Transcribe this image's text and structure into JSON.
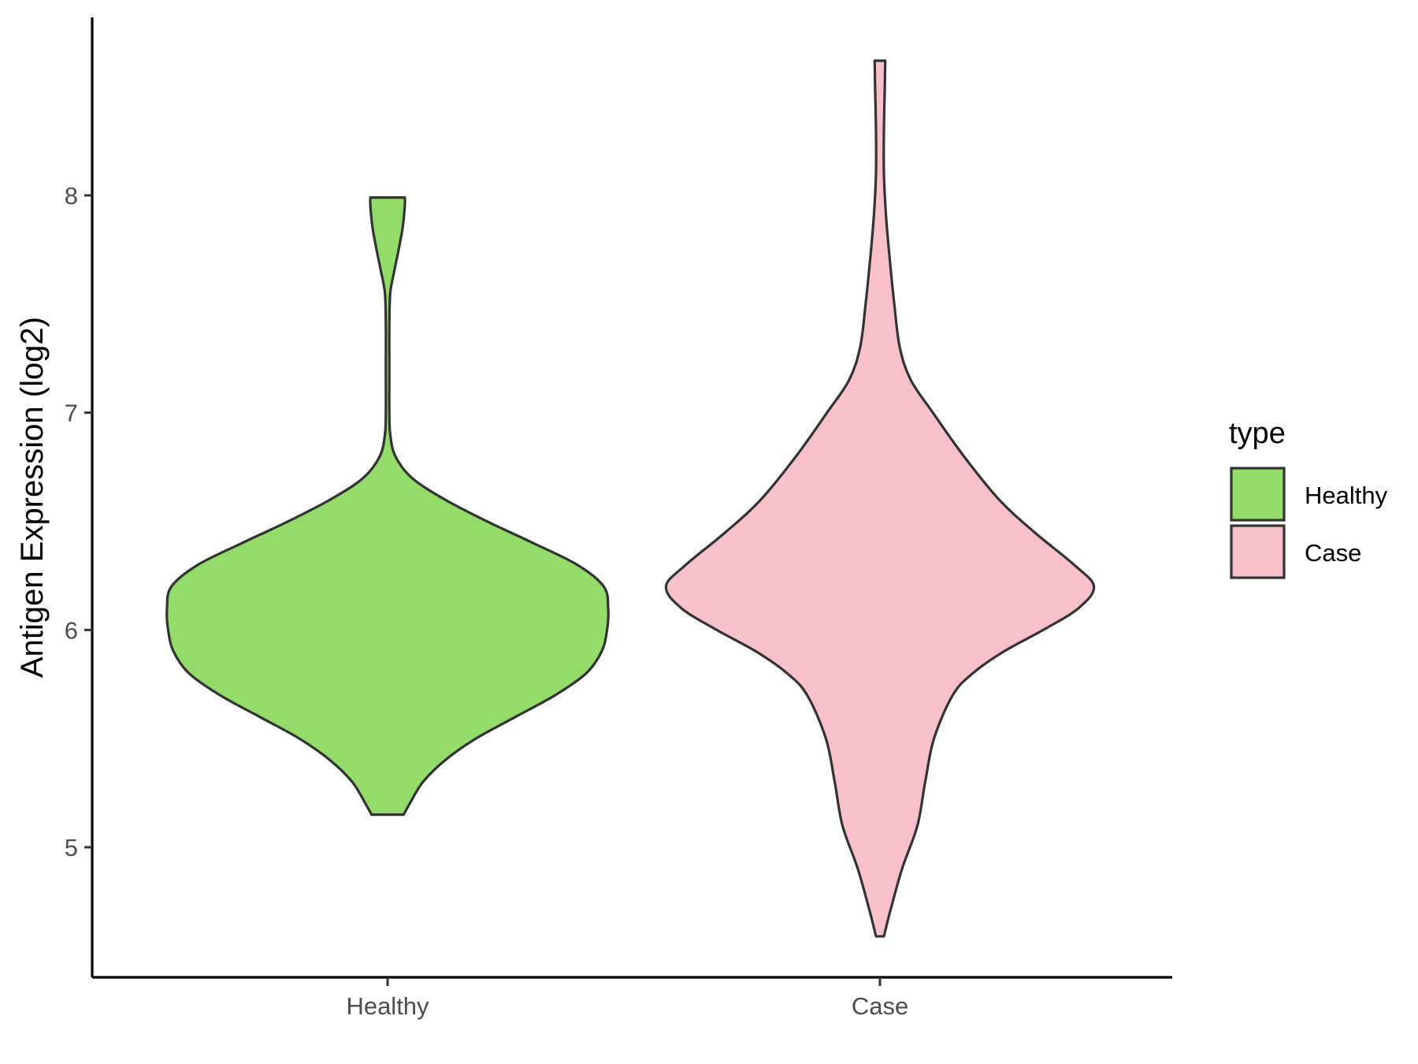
{
  "chart_data": {
    "type": "violin",
    "title": "",
    "xlabel": "",
    "ylabel": "Antigen Expression (log2)",
    "ylim": [
      4.4,
      8.8
    ],
    "yticks": [
      5,
      6,
      7,
      8
    ],
    "ytick_labels": [
      "5",
      "6",
      "7",
      "8"
    ],
    "categories": [
      "Healthy",
      "Case"
    ],
    "legend": {
      "title": "type",
      "position": "right",
      "entries": [
        {
          "label": "Healthy",
          "color": "#93dc6a"
        },
        {
          "label": "Case",
          "color": "#f7c0cb"
        }
      ]
    },
    "series": [
      {
        "name": "Healthy",
        "color": "#93dc6a",
        "min": 5.15,
        "max": 7.99,
        "profile": [
          {
            "y": 5.15,
            "w": 0.073
          },
          {
            "y": 5.2,
            "w": 0.1
          },
          {
            "y": 5.3,
            "w": 0.16
          },
          {
            "y": 5.4,
            "w": 0.26
          },
          {
            "y": 5.5,
            "w": 0.4
          },
          {
            "y": 5.6,
            "w": 0.58
          },
          {
            "y": 5.7,
            "w": 0.76
          },
          {
            "y": 5.8,
            "w": 0.9
          },
          {
            "y": 5.9,
            "w": 0.97
          },
          {
            "y": 6.0,
            "w": 0.995
          },
          {
            "y": 6.1,
            "w": 1.0
          },
          {
            "y": 6.2,
            "w": 0.98
          },
          {
            "y": 6.3,
            "w": 0.86
          },
          {
            "y": 6.4,
            "w": 0.66
          },
          {
            "y": 6.5,
            "w": 0.45
          },
          {
            "y": 6.6,
            "w": 0.26
          },
          {
            "y": 6.7,
            "w": 0.11
          },
          {
            "y": 6.8,
            "w": 0.035
          },
          {
            "y": 6.9,
            "w": 0.012
          },
          {
            "y": 7.0,
            "w": 0.008
          },
          {
            "y": 7.2,
            "w": 0.008
          },
          {
            "y": 7.4,
            "w": 0.008
          },
          {
            "y": 7.55,
            "w": 0.012
          },
          {
            "y": 7.65,
            "w": 0.03
          },
          {
            "y": 7.75,
            "w": 0.05
          },
          {
            "y": 7.85,
            "w": 0.068
          },
          {
            "y": 7.95,
            "w": 0.078
          },
          {
            "y": 7.99,
            "w": 0.078
          }
        ]
      },
      {
        "name": "Case",
        "color": "#f7c0cb",
        "min": 4.59,
        "max": 8.62,
        "profile": [
          {
            "y": 4.59,
            "w": 0.018
          },
          {
            "y": 4.7,
            "w": 0.045
          },
          {
            "y": 4.9,
            "w": 0.1
          },
          {
            "y": 5.1,
            "w": 0.17
          },
          {
            "y": 5.3,
            "w": 0.205
          },
          {
            "y": 5.5,
            "w": 0.245
          },
          {
            "y": 5.7,
            "w": 0.33
          },
          {
            "y": 5.8,
            "w": 0.42
          },
          {
            "y": 5.9,
            "w": 0.56
          },
          {
            "y": 6.0,
            "w": 0.74
          },
          {
            "y": 6.1,
            "w": 0.9
          },
          {
            "y": 6.2,
            "w": 0.97
          },
          {
            "y": 6.3,
            "w": 0.88
          },
          {
            "y": 6.45,
            "w": 0.7
          },
          {
            "y": 6.6,
            "w": 0.54
          },
          {
            "y": 6.8,
            "w": 0.38
          },
          {
            "y": 7.0,
            "w": 0.24
          },
          {
            "y": 7.15,
            "w": 0.14
          },
          {
            "y": 7.3,
            "w": 0.09
          },
          {
            "y": 7.5,
            "w": 0.065
          },
          {
            "y": 7.7,
            "w": 0.045
          },
          {
            "y": 7.9,
            "w": 0.028
          },
          {
            "y": 8.1,
            "w": 0.018
          },
          {
            "y": 8.3,
            "w": 0.018
          },
          {
            "y": 8.5,
            "w": 0.022
          },
          {
            "y": 8.62,
            "w": 0.024
          }
        ]
      }
    ]
  }
}
